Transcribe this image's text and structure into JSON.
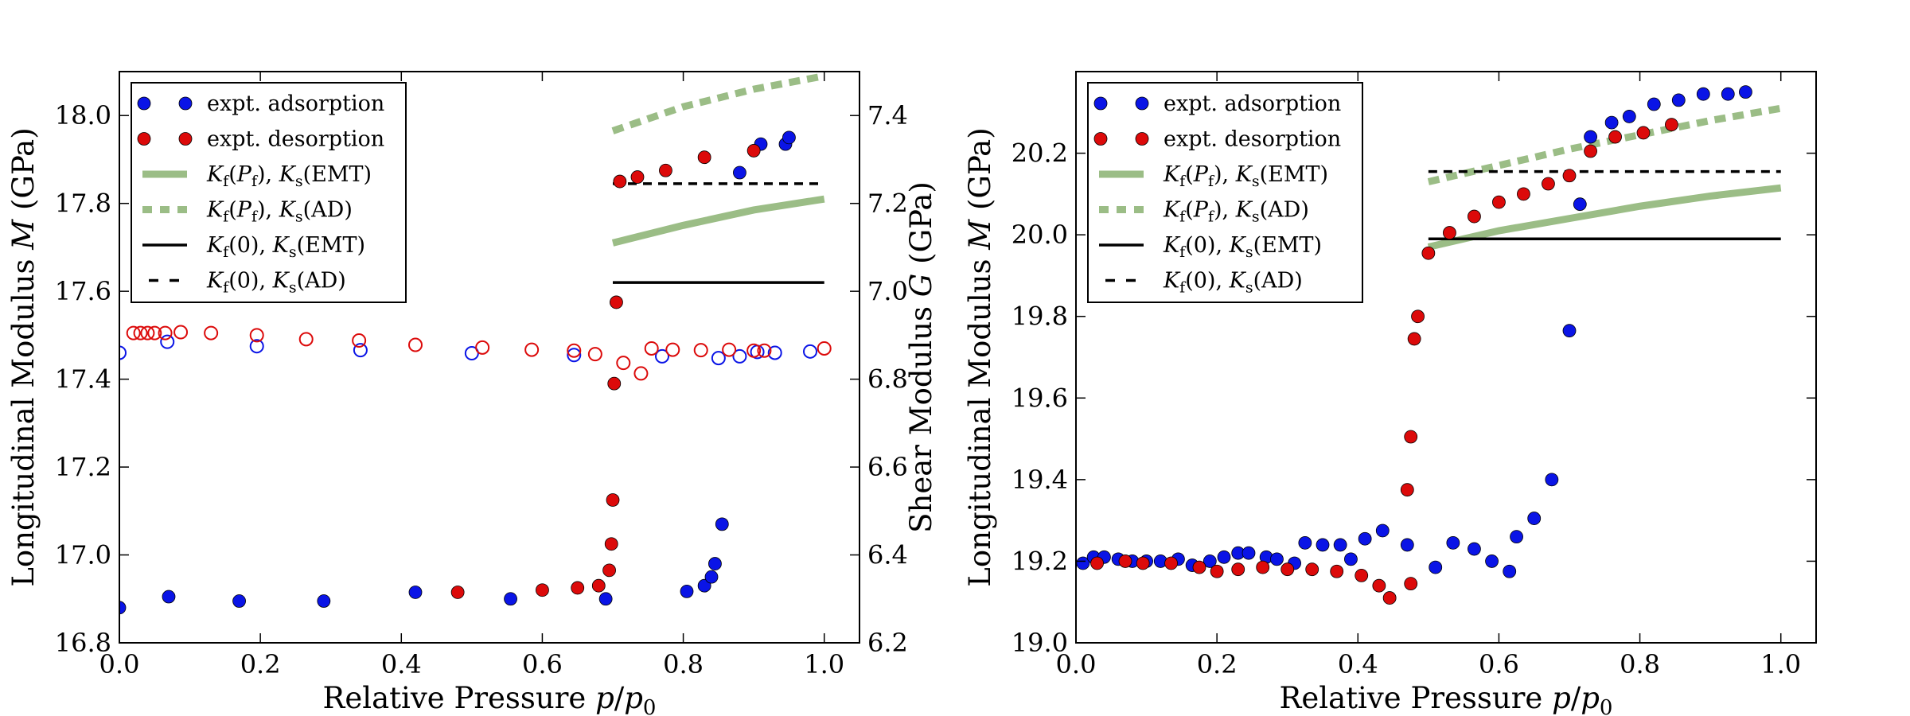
{
  "chart_data": [
    {
      "type": "scatter",
      "xlabel": "Relative Pressure p/p",
      "xlabel_sub": "0",
      "ylabel": "Longitudinal Modulus M (GPa)",
      "ylabel_right": "Shear Modulus G (GPa)",
      "xlim": [
        0.0,
        1.05
      ],
      "ylim": [
        16.8,
        18.1
      ],
      "ylim_right": [
        6.2,
        7.5
      ],
      "xticks": [
        0.0,
        0.2,
        0.4,
        0.6,
        0.8,
        1.0
      ],
      "xtick_labels": [
        "0.0",
        "0.2",
        "0.4",
        "0.6",
        "0.8",
        "1.0"
      ],
      "yticks": [
        16.8,
        17.0,
        17.2,
        17.4,
        17.6,
        17.8,
        18.0
      ],
      "ytick_labels": [
        "16.8",
        "17.0",
        "17.2",
        "17.4",
        "17.6",
        "17.8",
        "18.0"
      ],
      "yticks_right": [
        6.2,
        6.4,
        6.6,
        6.8,
        7.0,
        7.2,
        7.4
      ],
      "ytick_labels_right": [
        "6.2",
        "6.4",
        "6.6",
        "6.8",
        "7.0",
        "7.2",
        "7.4"
      ],
      "grid": false,
      "legend_position": "top-left",
      "legend": [
        {
          "text": "expt. adsorption",
          "style": "blue-dots"
        },
        {
          "text": "expt. desorption",
          "style": "red-dots"
        },
        {
          "text": "Kf(Pf), Ks(EMT)",
          "style": "green-solid"
        },
        {
          "text": "Kf(Pf), Ks(AD)",
          "style": "green-dashed"
        },
        {
          "text": "Kf(0), Ks(EMT)",
          "style": "black-solid"
        },
        {
          "text": "Kf(0), Ks(AD)",
          "style": "black-dashed"
        }
      ],
      "series": [
        {
          "name": "expt. adsorption",
          "axis": "left",
          "marker": "filled",
          "color": "#0a14e6",
          "x": [
            0.0,
            0.07,
            0.17,
            0.29,
            0.42,
            0.555,
            0.69,
            0.805,
            0.83,
            0.84,
            0.845,
            0.855,
            0.88,
            0.91,
            0.945,
            0.95
          ],
          "y": [
            16.88,
            16.905,
            16.895,
            16.895,
            16.915,
            16.9,
            16.9,
            16.917,
            16.93,
            16.95,
            16.98,
            17.07,
            17.87,
            17.935,
            17.935,
            17.95
          ]
        },
        {
          "name": "expt. desorption",
          "axis": "left",
          "marker": "filled",
          "color": "#dc0a0a",
          "x": [
            0.48,
            0.6,
            0.65,
            0.68,
            0.695,
            0.698,
            0.7,
            0.702,
            0.705,
            0.71,
            0.735,
            0.775,
            0.83,
            0.9
          ],
          "y": [
            16.915,
            16.92,
            16.925,
            16.93,
            16.965,
            17.025,
            17.125,
            17.39,
            17.575,
            17.85,
            17.86,
            17.875,
            17.905,
            17.92
          ]
        },
        {
          "name": "adsorption",
          "axis": "right",
          "marker": "open",
          "color": "#0a14e6",
          "x": [
            0.0,
            0.068,
            0.195,
            0.342,
            0.5,
            0.645,
            0.77,
            0.85,
            0.88,
            0.905,
            0.93,
            0.98
          ],
          "y": [
            6.86,
            6.885,
            6.875,
            6.866,
            6.859,
            6.855,
            6.852,
            6.848,
            6.852,
            6.862,
            6.86,
            6.863
          ]
        },
        {
          "name": "desorption",
          "axis": "right",
          "marker": "open",
          "color": "#dc0a0a",
          "x": [
            0.02,
            0.03,
            0.04,
            0.05,
            0.065,
            0.087,
            0.13,
            0.195,
            0.265,
            0.34,
            0.42,
            0.515,
            0.585,
            0.645,
            0.675,
            0.715,
            0.74,
            0.755,
            0.785,
            0.825,
            0.865,
            0.9,
            0.915,
            1.0
          ],
          "y": [
            6.905,
            6.905,
            6.905,
            6.905,
            6.905,
            6.907,
            6.905,
            6.9,
            6.891,
            6.888,
            6.878,
            6.872,
            6.867,
            6.865,
            6.857,
            6.837,
            6.813,
            6.87,
            6.867,
            6.866,
            6.867,
            6.865,
            6.865,
            6.87
          ]
        }
      ],
      "lines": [
        {
          "name": "Kf(Pf), Ks(EMT)",
          "style": "green-solid",
          "x": [
            0.7,
            0.8,
            0.9,
            1.0
          ],
          "y": [
            17.71,
            17.75,
            17.785,
            17.81
          ]
        },
        {
          "name": "Kf(Pf), Ks(AD)",
          "style": "green-dashed",
          "x": [
            0.7,
            0.8,
            0.9,
            1.0
          ],
          "y": [
            17.965,
            18.02,
            18.06,
            18.09
          ]
        },
        {
          "name": "Kf(0), Ks(EMT)",
          "style": "black-solid",
          "x": [
            0.7,
            1.0
          ],
          "y": [
            17.62,
            17.62
          ]
        },
        {
          "name": "Kf(0), Ks(AD)",
          "style": "black-dashed",
          "x": [
            0.7,
            1.0
          ],
          "y": [
            17.845,
            17.845
          ]
        }
      ]
    },
    {
      "type": "scatter",
      "xlabel": "Relative Pressure p/p",
      "xlabel_sub": "0",
      "ylabel": "Longitudinal Modulus M (GPa)",
      "xlim": [
        0.0,
        1.05
      ],
      "ylim": [
        19.0,
        20.4
      ],
      "xticks": [
        0.0,
        0.2,
        0.4,
        0.6,
        0.8,
        1.0
      ],
      "xtick_labels": [
        "0.0",
        "0.2",
        "0.4",
        "0.6",
        "0.8",
        "1.0"
      ],
      "yticks": [
        19.0,
        19.2,
        19.4,
        19.6,
        19.8,
        20.0,
        20.2
      ],
      "ytick_labels": [
        "19.0",
        "19.2",
        "19.4",
        "19.6",
        "19.8",
        "20.0",
        "20.2"
      ],
      "grid": false,
      "legend_position": "top-left",
      "legend": [
        {
          "text": "expt. adsorption",
          "style": "blue-dots"
        },
        {
          "text": "expt. desorption",
          "style": "red-dots"
        },
        {
          "text": "Kf(Pf), Ks(EMT)",
          "style": "green-solid"
        },
        {
          "text": "Kf(Pf), Ks(AD)",
          "style": "green-dashed"
        },
        {
          "text": "Kf(0), Ks(EMT)",
          "style": "black-solid"
        },
        {
          "text": "Kf(0), Ks(AD)",
          "style": "black-dashed"
        }
      ],
      "series": [
        {
          "name": "expt. adsorption",
          "axis": "left",
          "marker": "filled",
          "color": "#0a14e6",
          "x": [
            0.01,
            0.025,
            0.04,
            0.06,
            0.08,
            0.1,
            0.12,
            0.145,
            0.165,
            0.19,
            0.21,
            0.23,
            0.245,
            0.27,
            0.285,
            0.31,
            0.325,
            0.35,
            0.375,
            0.39,
            0.41,
            0.435,
            0.47,
            0.51,
            0.535,
            0.565,
            0.59,
            0.615,
            0.625,
            0.65,
            0.675,
            0.7,
            0.715,
            0.73,
            0.76,
            0.785,
            0.82,
            0.855,
            0.89,
            0.925,
            0.95
          ],
          "y": [
            19.195,
            19.21,
            19.21,
            19.205,
            19.2,
            19.2,
            19.2,
            19.205,
            19.19,
            19.2,
            19.21,
            19.22,
            19.22,
            19.21,
            19.205,
            19.195,
            19.245,
            19.24,
            19.24,
            19.205,
            19.255,
            19.275,
            19.24,
            19.185,
            19.245,
            19.23,
            19.2,
            19.175,
            19.26,
            19.305,
            19.4,
            19.765,
            20.075,
            20.24,
            20.275,
            20.29,
            20.32,
            20.33,
            20.345,
            20.345,
            20.35
          ]
        },
        {
          "name": "expt. desorption",
          "axis": "left",
          "marker": "filled",
          "color": "#dc0a0a",
          "x": [
            0.03,
            0.07,
            0.095,
            0.135,
            0.175,
            0.2,
            0.23,
            0.265,
            0.3,
            0.335,
            0.37,
            0.405,
            0.43,
            0.445,
            0.475,
            0.47,
            0.475,
            0.48,
            0.485,
            0.5,
            0.53,
            0.565,
            0.6,
            0.635,
            0.67,
            0.7,
            0.73,
            0.765,
            0.805,
            0.845
          ],
          "y": [
            19.195,
            19.2,
            19.195,
            19.195,
            19.185,
            19.175,
            19.18,
            19.185,
            19.18,
            19.18,
            19.175,
            19.165,
            19.14,
            19.11,
            19.145,
            19.375,
            19.505,
            19.745,
            19.8,
            19.955,
            20.005,
            20.045,
            20.08,
            20.1,
            20.125,
            20.145,
            20.205,
            20.24,
            20.25,
            20.27
          ]
        }
      ],
      "lines": [
        {
          "name": "Kf(Pf), Ks(EMT)",
          "style": "green-solid",
          "x": [
            0.5,
            0.6,
            0.7,
            0.8,
            0.9,
            1.0
          ],
          "y": [
            19.97,
            20.01,
            20.04,
            20.07,
            20.095,
            20.115
          ]
        },
        {
          "name": "Kf(Pf), Ks(AD)",
          "style": "green-dashed",
          "x": [
            0.5,
            0.6,
            0.7,
            0.8,
            0.9,
            1.0
          ],
          "y": [
            20.13,
            20.17,
            20.21,
            20.245,
            20.28,
            20.31
          ]
        },
        {
          "name": "Kf(0), Ks(EMT)",
          "style": "black-solid",
          "x": [
            0.5,
            1.0
          ],
          "y": [
            19.99,
            19.99
          ]
        },
        {
          "name": "Kf(0), Ks(AD)",
          "style": "black-dashed",
          "x": [
            0.5,
            1.0
          ],
          "y": [
            20.155,
            20.155
          ]
        }
      ]
    }
  ]
}
